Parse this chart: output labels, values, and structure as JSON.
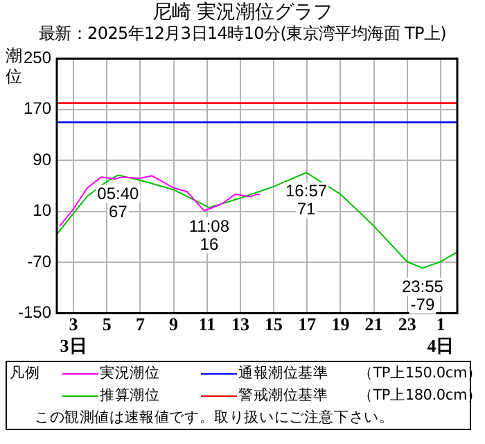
{
  "chart_data": {
    "type": "line",
    "title": "尼崎 実況潮位グラフ",
    "subtitle": "最新：2025年12月3日14時10分(東京湾平均海面 TP上)",
    "ylabel": "潮位",
    "legend_title": "凡例",
    "legend": "bottom",
    "grid": true,
    "marker": "none",
    "line_style": "solid",
    "xlim": [
      2,
      26
    ],
    "xticks": [
      {
        "value": 3,
        "label": "3\n3日"
      },
      {
        "value": 5,
        "label": "5"
      },
      {
        "value": 7,
        "label": "7"
      },
      {
        "value": 9,
        "label": "9"
      },
      {
        "value": 11,
        "label": "11"
      },
      {
        "value": 13,
        "label": "13"
      },
      {
        "value": 15,
        "label": "15"
      },
      {
        "value": 17,
        "label": "17"
      },
      {
        "value": 19,
        "label": "19"
      },
      {
        "value": 21,
        "label": "21"
      },
      {
        "value": 23,
        "label": "23"
      },
      {
        "value": 25,
        "label": "1\n4日"
      }
    ],
    "ylim": [
      -150,
      250
    ],
    "yticks": [
      -150,
      -70,
      10,
      90,
      170,
      250
    ],
    "series": [
      {
        "name": "実況潮位",
        "color": "#ff00ff",
        "x": [
          2.17,
          3,
          3.83,
          4.67,
          5.5,
          5.9,
          7,
          7.7,
          9,
          9.8,
          10.84,
          11.9,
          12.7,
          13.6,
          14,
          14.17
        ],
        "values": [
          -13,
          14,
          47,
          64,
          61,
          64,
          62,
          66,
          47,
          41,
          11,
          22,
          37,
          33,
          37,
          36
        ]
      },
      {
        "name": "推算潮位",
        "color": "#00c000",
        "x": [
          2,
          3,
          3.83,
          5,
          5.67,
          7,
          9,
          11.13,
          13,
          15,
          16.95,
          19,
          21,
          23,
          23.92,
          25,
          26
        ],
        "values": [
          -26,
          7,
          34,
          57,
          67,
          59,
          44,
          16,
          31,
          49,
          71,
          37,
          -13,
          -69,
          -79,
          -69,
          -54
        ]
      }
    ],
    "ref_lines": [
      {
        "axis": "y",
        "value": 150,
        "label": "通報潮位基準　　（TP上150.0cm）",
        "color": "#0000ff"
      },
      {
        "axis": "y",
        "value": 180,
        "label": "警戒潮位基準　　（TP上180.0cm）",
        "color": "#ff0000"
      }
    ],
    "annotations": [
      {
        "text": "05:40\n67",
        "x": 5.67,
        "y": 67
      },
      {
        "text": "11:08\n16",
        "x": 11.13,
        "y": 16
      },
      {
        "text": "16:57\n71",
        "x": 16.95,
        "y": 71
      },
      {
        "text": "23:55\n-79",
        "x": 23.92,
        "y": -79
      },
      "この観測値は速報値です。取り扱いにご注意下さい。"
    ]
  }
}
